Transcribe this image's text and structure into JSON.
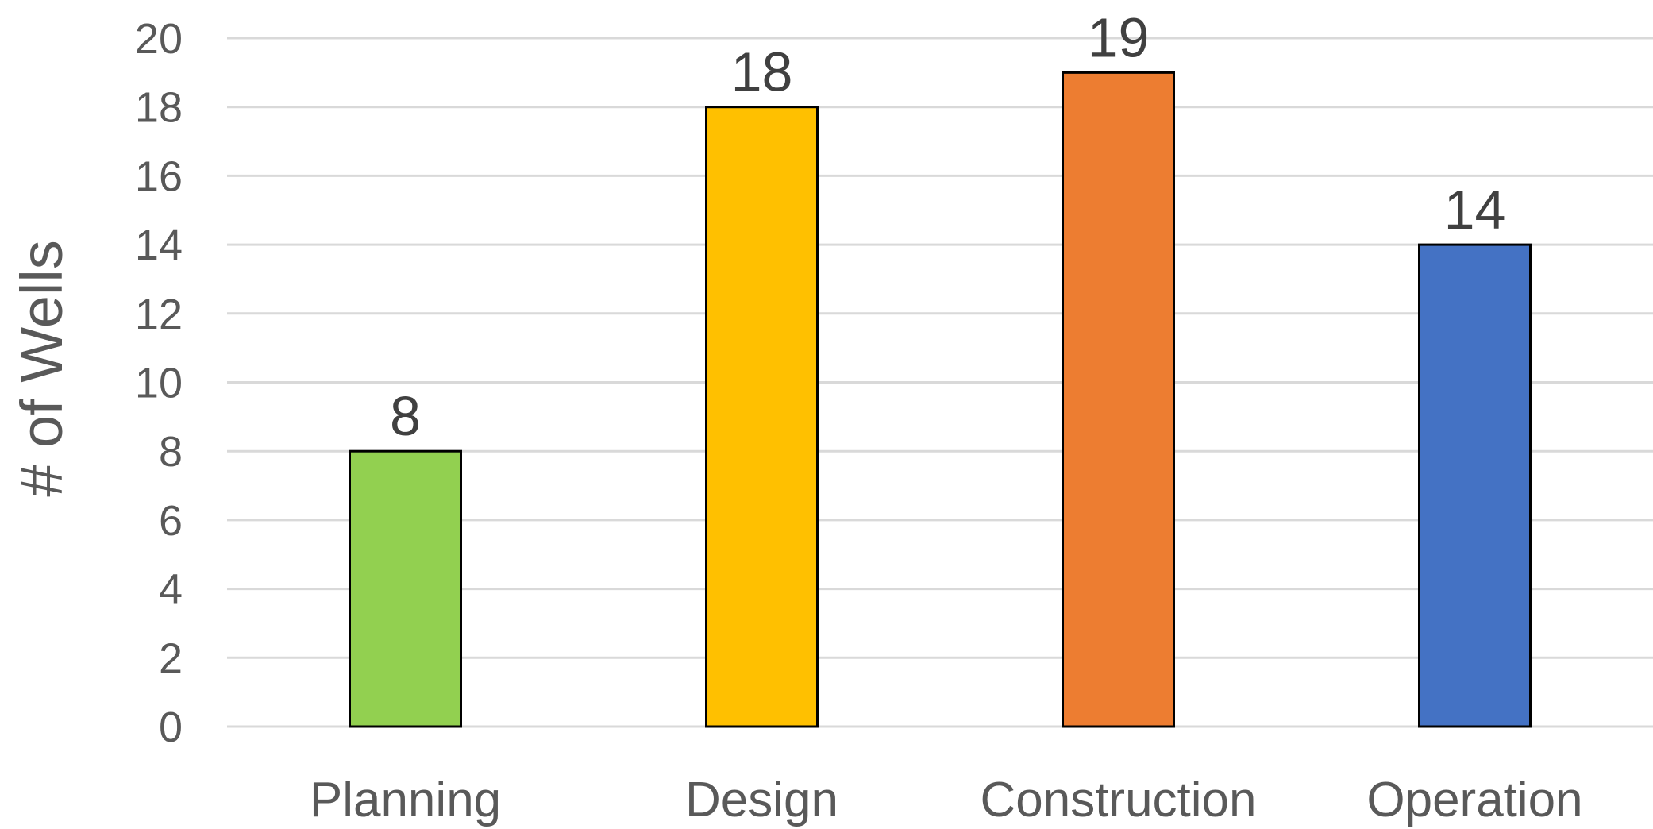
{
  "chart_data": {
    "type": "bar",
    "title": "",
    "xlabel": "",
    "ylabel": "# of Wells",
    "categories": [
      "Planning",
      "Design",
      "Construction",
      "Operation"
    ],
    "values": [
      8,
      18,
      19,
      14
    ],
    "colors": [
      "#92d050",
      "#ffc000",
      "#ed7d31",
      "#4472c4"
    ],
    "ylim": [
      0,
      20
    ],
    "yticks": [
      0,
      2,
      4,
      6,
      8,
      10,
      12,
      14,
      16,
      18,
      20
    ],
    "grid": true,
    "legend": "none",
    "data_labels": true
  }
}
